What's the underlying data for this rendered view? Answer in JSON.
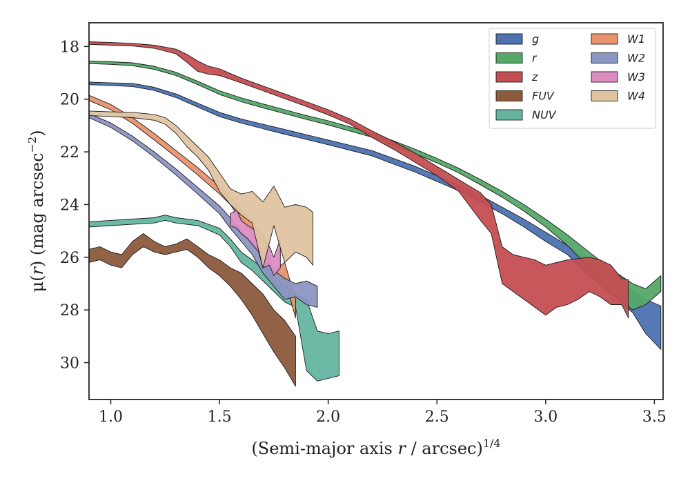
{
  "chart_data": {
    "type": "area",
    "xlabel_main": "(Semi-major axis ",
    "xlabel_var": "r",
    "xlabel_mid": " / arcsec)",
    "xlabel_sup": "1/4",
    "ylabel_main": "μ(",
    "ylabel_var": "r",
    "ylabel_mid": ") (mag arcsec",
    "ylabel_sup": "−2",
    "ylabel_end": ")",
    "xlim": [
      0.9,
      3.54
    ],
    "ylim": [
      31.4,
      17.1
    ],
    "y_inverted": true,
    "xticks": [
      1.0,
      1.5,
      2.0,
      2.5,
      3.0,
      3.5
    ],
    "xtick_labels": [
      "1.0",
      "1.5",
      "2.0",
      "2.5",
      "3.0",
      "3.5"
    ],
    "yticks": [
      18,
      20,
      22,
      24,
      26,
      28,
      30
    ],
    "ytick_labels": [
      "18",
      "20",
      "22",
      "24",
      "26",
      "28",
      "30"
    ],
    "grid": false,
    "legend_position": "top-right",
    "legend_columns": 2,
    "series": [
      {
        "name": "g",
        "color": "#4c72b0",
        "x": [
          0.9,
          1.0,
          1.1,
          1.2,
          1.3,
          1.4,
          1.5,
          1.6,
          1.7,
          1.8,
          1.9,
          2.0,
          2.1,
          2.2,
          2.3,
          2.4,
          2.5,
          2.6,
          2.7,
          2.8,
          2.9,
          3.0,
          3.1,
          3.2,
          3.3,
          3.4,
          3.46,
          3.53
        ],
        "lo": [
          19.35,
          19.38,
          19.4,
          19.55,
          19.8,
          20.15,
          20.5,
          20.75,
          20.95,
          21.15,
          21.35,
          21.55,
          21.75,
          21.95,
          22.25,
          22.55,
          22.9,
          23.25,
          23.65,
          24.1,
          24.55,
          25.05,
          25.55,
          26.2,
          26.75,
          27.25,
          27.6,
          27.85
        ],
        "hi": [
          19.45,
          19.48,
          19.52,
          19.67,
          19.94,
          20.3,
          20.66,
          20.91,
          21.12,
          21.33,
          21.53,
          21.73,
          21.94,
          22.15,
          22.46,
          22.77,
          23.12,
          23.48,
          23.9,
          24.35,
          24.85,
          25.4,
          25.9,
          26.7,
          27.4,
          28.1,
          28.9,
          29.5
        ]
      },
      {
        "name": "r",
        "color": "#55a868",
        "x": [
          0.9,
          1.0,
          1.1,
          1.2,
          1.3,
          1.4,
          1.5,
          1.6,
          1.7,
          1.8,
          1.9,
          2.0,
          2.1,
          2.2,
          2.3,
          2.4,
          2.5,
          2.6,
          2.7,
          2.8,
          2.9,
          3.0,
          3.1,
          3.2,
          3.3,
          3.4,
          3.46,
          3.53
        ],
        "lo": [
          18.55,
          18.58,
          18.62,
          18.75,
          18.98,
          19.32,
          19.68,
          19.95,
          20.18,
          20.4,
          20.62,
          20.82,
          21.05,
          21.28,
          21.58,
          21.9,
          22.25,
          22.62,
          23.05,
          23.5,
          24.0,
          24.55,
          25.15,
          25.8,
          26.45,
          27.0,
          27.2,
          26.7
        ],
        "hi": [
          18.65,
          18.68,
          18.73,
          18.87,
          19.1,
          19.45,
          19.82,
          20.1,
          20.33,
          20.55,
          20.77,
          20.98,
          21.21,
          21.44,
          21.75,
          22.07,
          22.42,
          22.8,
          23.25,
          23.72,
          24.25,
          24.85,
          25.55,
          26.4,
          27.3,
          28.0,
          27.8,
          27.3
        ]
      },
      {
        "name": "z",
        "color": "#c44e52",
        "x": [
          0.9,
          1.0,
          1.1,
          1.2,
          1.3,
          1.35,
          1.4,
          1.45,
          1.5,
          1.6,
          1.7,
          1.8,
          1.9,
          2.0,
          2.1,
          2.2,
          2.3,
          2.4,
          2.5,
          2.6,
          2.7,
          2.75,
          2.8,
          2.85,
          2.9,
          2.95,
          3.0,
          3.05,
          3.1,
          3.15,
          3.2,
          3.25,
          3.3,
          3.35,
          3.38
        ],
        "lo": [
          17.82,
          17.85,
          17.88,
          17.95,
          18.1,
          18.3,
          18.55,
          18.75,
          18.85,
          19.2,
          19.5,
          19.8,
          20.1,
          20.4,
          20.75,
          21.2,
          21.6,
          22.05,
          22.55,
          23.05,
          23.55,
          24.0,
          25.6,
          25.9,
          26.0,
          26.1,
          26.3,
          26.2,
          26.1,
          26.05,
          26.0,
          26.1,
          26.3,
          26.8,
          26.85
        ],
        "hi": [
          17.92,
          17.95,
          17.98,
          18.07,
          18.28,
          18.6,
          18.95,
          19.05,
          19.1,
          19.38,
          19.68,
          19.98,
          20.28,
          20.6,
          20.95,
          21.45,
          21.9,
          22.4,
          22.9,
          23.5,
          24.6,
          25.1,
          27.0,
          27.3,
          27.6,
          27.9,
          28.2,
          27.9,
          27.8,
          27.6,
          27.3,
          27.5,
          27.8,
          27.8,
          28.3
        ]
      },
      {
        "name": "FUV",
        "color": "#8c5a3c",
        "x": [
          0.9,
          0.95,
          1.0,
          1.05,
          1.1,
          1.15,
          1.2,
          1.25,
          1.3,
          1.35,
          1.4,
          1.45,
          1.5,
          1.55,
          1.6,
          1.65,
          1.7,
          1.75,
          1.8,
          1.85
        ],
        "lo": [
          25.7,
          25.6,
          25.8,
          25.9,
          25.4,
          25.1,
          25.4,
          25.6,
          25.5,
          25.3,
          25.6,
          25.9,
          26.1,
          26.4,
          26.6,
          27.0,
          27.4,
          28.0,
          28.4,
          29.0
        ],
        "hi": [
          26.2,
          26.1,
          26.3,
          26.4,
          25.9,
          25.6,
          25.8,
          25.9,
          25.8,
          25.7,
          26.0,
          26.4,
          26.7,
          27.1,
          27.6,
          28.2,
          28.9,
          29.6,
          30.2,
          30.9
        ]
      },
      {
        "name": "NUV",
        "color": "#64b5a0",
        "x": [
          0.9,
          1.0,
          1.1,
          1.2,
          1.25,
          1.3,
          1.4,
          1.5,
          1.55,
          1.6,
          1.65,
          1.7,
          1.75,
          1.8,
          1.85,
          1.9,
          1.95,
          2.0,
          2.05
        ],
        "lo": [
          24.65,
          24.6,
          24.55,
          24.5,
          24.4,
          24.5,
          24.6,
          24.9,
          25.3,
          25.8,
          26.1,
          26.4,
          26.7,
          27.1,
          27.4,
          27.6,
          28.8,
          28.9,
          28.8
        ],
        "hi": [
          24.85,
          24.8,
          24.75,
          24.7,
          24.6,
          24.7,
          24.8,
          25.15,
          25.6,
          26.2,
          26.5,
          26.9,
          27.3,
          27.7,
          27.9,
          30.3,
          30.7,
          30.6,
          30.5
        ]
      },
      {
        "name": "W1",
        "color": "#e8936e",
        "x": [
          0.9,
          1.0,
          1.1,
          1.2,
          1.3,
          1.4,
          1.5,
          1.55,
          1.6,
          1.65,
          1.7,
          1.75,
          1.8,
          1.85
        ],
        "lo": [
          19.85,
          20.2,
          20.7,
          21.3,
          21.95,
          22.6,
          23.3,
          23.7,
          24.2,
          24.6,
          25.4,
          26.5,
          26.2,
          27.6
        ],
        "hi": [
          20.05,
          20.4,
          20.92,
          21.55,
          22.2,
          22.88,
          23.6,
          24.0,
          24.6,
          25.1,
          26.1,
          27.0,
          26.8,
          28.3
        ]
      },
      {
        "name": "W2",
        "color": "#8c96c2",
        "x": [
          0.9,
          1.0,
          1.1,
          1.2,
          1.3,
          1.4,
          1.5,
          1.55,
          1.6,
          1.65,
          1.7,
          1.75,
          1.8,
          1.85,
          1.9,
          1.95
        ],
        "lo": [
          20.55,
          20.9,
          21.4,
          22.0,
          22.65,
          23.35,
          24.05,
          24.5,
          25.0,
          25.4,
          26.0,
          26.5,
          26.8,
          27.0,
          26.9,
          27.1
        ],
        "hi": [
          20.7,
          21.07,
          21.58,
          22.2,
          22.88,
          23.6,
          24.35,
          24.9,
          25.4,
          25.9,
          26.6,
          27.1,
          27.6,
          27.5,
          27.8,
          27.9
        ]
      },
      {
        "name": "W3",
        "color": "#dd8dc4",
        "x": [
          1.55,
          1.58,
          1.6,
          1.63,
          1.65,
          1.68,
          1.7,
          1.73,
          1.75,
          1.78
        ],
        "lo": [
          24.35,
          24.2,
          24.6,
          24.8,
          24.9,
          25.0,
          25.2,
          25.6,
          26.0,
          25.3
        ],
        "hi": [
          24.8,
          24.9,
          25.1,
          25.3,
          25.5,
          25.8,
          26.4,
          26.3,
          26.7,
          26.4
        ]
      },
      {
        "name": "W4",
        "color": "#dfc4a0",
        "x": [
          0.9,
          1.0,
          1.1,
          1.2,
          1.25,
          1.3,
          1.35,
          1.4,
          1.45,
          1.5,
          1.55,
          1.6,
          1.65,
          1.7,
          1.75,
          1.8,
          1.85,
          1.9,
          1.93
        ],
        "lo": [
          20.45,
          20.48,
          20.5,
          20.58,
          20.7,
          21.0,
          21.4,
          21.8,
          22.2,
          22.8,
          23.4,
          23.6,
          23.5,
          23.9,
          23.3,
          24.1,
          24.0,
          24.1,
          24.3
        ],
        "hi": [
          20.62,
          20.66,
          20.7,
          20.8,
          20.95,
          21.3,
          21.8,
          22.2,
          22.7,
          23.5,
          24.0,
          24.4,
          24.7,
          26.4,
          24.8,
          26.2,
          25.8,
          26.0,
          26.3
        ]
      }
    ]
  }
}
